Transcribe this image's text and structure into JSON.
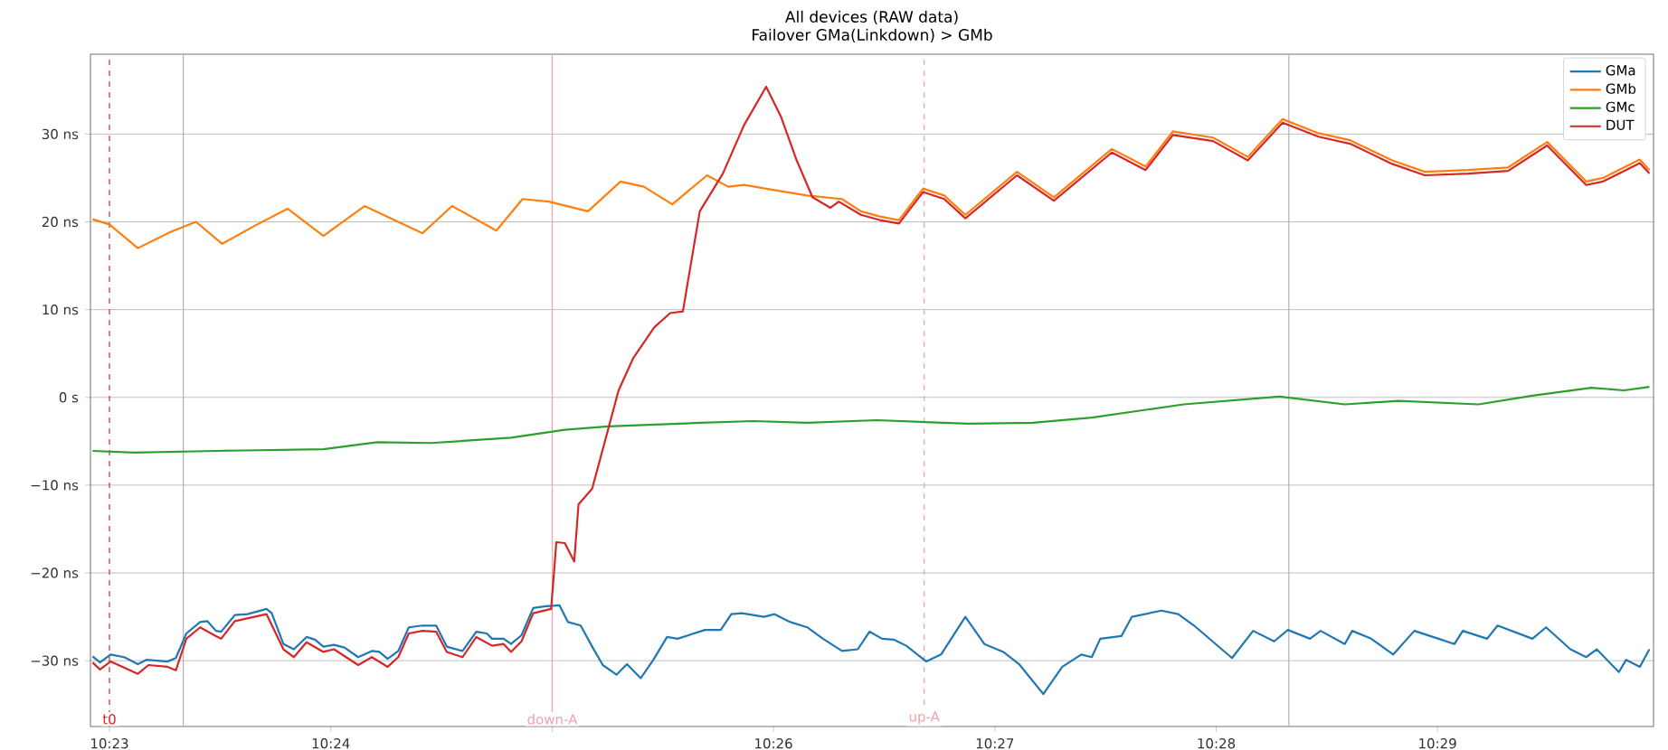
{
  "chart_data": {
    "type": "line",
    "title": "All devices (RAW data)",
    "subtitle": "Failover GMa(Linkdown) > GMb",
    "xlim": [
      10.3819,
      10.4996
    ],
    "ylim": [
      -37.5,
      39.1
    ],
    "xticks": [
      {
        "value": 10.38333,
        "label": "10:23"
      },
      {
        "value": 10.4,
        "label": "10:24"
      },
      {
        "value": 10.41667,
        "label": null
      },
      {
        "value": 10.43333,
        "label": "10:26"
      },
      {
        "value": 10.45,
        "label": "10:27"
      },
      {
        "value": 10.46667,
        "label": "10:28"
      },
      {
        "value": 10.48333,
        "label": "10:29"
      }
    ],
    "yticks": [
      {
        "value": -30,
        "label": "−30 ns"
      },
      {
        "value": -20,
        "label": "−20 ns"
      },
      {
        "value": -10,
        "label": "−10 ns"
      },
      {
        "value": 0,
        "label": "0 s"
      },
      {
        "value": 10,
        "label": "10 ns"
      },
      {
        "value": 20,
        "label": "20 ns"
      },
      {
        "value": 30,
        "label": "30 ns"
      }
    ],
    "grid": "y",
    "legend": "top right",
    "marker": "none",
    "line_style": "solid",
    "ref_lines": [
      {
        "axis": "x",
        "value": 10.38889,
        "color": "#b0b0b0",
        "line_style": "solid"
      },
      {
        "axis": "x",
        "value": 10.47214,
        "color": "#b0b0b0",
        "line_style": "solid"
      },
      {
        "axis": "x",
        "value": 10.38333,
        "label": "t0",
        "color": "#d62728",
        "line_style": "dashed"
      },
      {
        "axis": "x",
        "value": 10.41667,
        "label": "down-A",
        "color": "#f4a0aa",
        "line_style": "solid"
      },
      {
        "axis": "x",
        "value": 10.44468,
        "label": "up-A",
        "color": "#f4a0aa",
        "line_style": "dashed"
      }
    ],
    "series": [
      {
        "name": "GMa",
        "color": "#1f77b4",
        "x": [
          10.38206,
          10.38262,
          10.38341,
          10.38444,
          10.38547,
          10.38611,
          10.3877,
          10.38833,
          10.38912,
          10.39016,
          10.39071,
          10.39135,
          10.39174,
          10.39277,
          10.39373,
          10.39516,
          10.39555,
          10.39643,
          10.39722,
          10.39817,
          10.39881,
          10.39944,
          10.40024,
          10.40103,
          10.40206,
          10.40309,
          10.40365,
          10.40428,
          10.40508,
          10.40587,
          10.4069,
          10.40793,
          10.40873,
          10.40992,
          10.41095,
          10.41174,
          10.41214,
          10.41301,
          10.41357,
          10.41436,
          10.41524,
          10.41619,
          10.41722,
          10.41786,
          10.41881,
          10.41968,
          10.42048,
          10.42151,
          10.4223,
          10.42333,
          10.42429,
          10.42532,
          10.42611,
          10.42817,
          10.42936,
          10.43016,
          10.43095,
          10.43262,
          10.43341,
          10.4346,
          10.43587,
          10.43706,
          10.43849,
          10.43968,
          10.44056,
          10.44151,
          10.44238,
          10.44333,
          10.44484,
          10.44595,
          10.44778,
          10.44921,
          10.45064,
          10.45183,
          10.45365,
          10.45508,
          10.45651,
          10.4573,
          10.45794,
          10.45953,
          10.46032,
          10.46254,
          10.46381,
          10.465,
          10.46786,
          10.46945,
          10.47103,
          10.47207,
          10.47373,
          10.47453,
          10.47635,
          10.47691,
          10.47834,
          10.48,
          10.48159,
          10.48341,
          10.48461,
          10.48524,
          10.48707,
          10.48786,
          10.49048,
          10.49151,
          10.49334,
          10.49453,
          10.49532,
          10.49699,
          10.49754,
          10.49857,
          10.49929
        ],
        "values": [
          -29.5,
          -30.2,
          -29.3,
          -29.6,
          -30.4,
          -29.9,
          -30.1,
          -29.7,
          -26.9,
          -25.6,
          -25.5,
          -26.6,
          -26.7,
          -24.8,
          -24.7,
          -24.1,
          -24.6,
          -28.1,
          -28.7,
          -27.3,
          -27.6,
          -28.4,
          -28.2,
          -28.5,
          -29.6,
          -28.9,
          -29.0,
          -29.8,
          -28.9,
          -26.2,
          -26.0,
          -26.0,
          -28.4,
          -28.9,
          -26.7,
          -26.9,
          -27.5,
          -27.5,
          -28.1,
          -27.1,
          -24.0,
          -23.8,
          -23.7,
          -25.6,
          -26.0,
          -28.4,
          -30.5,
          -31.6,
          -30.4,
          -32.0,
          -29.9,
          -27.3,
          -27.5,
          -26.5,
          -26.5,
          -24.7,
          -24.6,
          -25.0,
          -24.7,
          -25.6,
          -26.2,
          -27.5,
          -28.9,
          -28.7,
          -26.7,
          -27.5,
          -27.6,
          -28.3,
          -30.1,
          -29.3,
          -25.0,
          -28.1,
          -29.0,
          -30.4,
          -33.8,
          -30.7,
          -29.3,
          -29.6,
          -27.5,
          -27.2,
          -25.0,
          -24.3,
          -24.7,
          -26.0,
          -29.7,
          -26.6,
          -27.8,
          -26.5,
          -27.5,
          -26.6,
          -28.1,
          -26.6,
          -27.5,
          -29.3,
          -26.6,
          -27.5,
          -28.1,
          -26.6,
          -27.5,
          -26.0,
          -27.5,
          -26.2,
          -28.7,
          -29.6,
          -28.7,
          -31.3,
          -29.9,
          -30.7,
          -28.7
        ]
      },
      {
        "name": "GMb",
        "color": "#ff7f0e",
        "x": [
          10.38206,
          10.38333,
          10.38547,
          10.38785,
          10.38984,
          10.39182,
          10.3942,
          10.39674,
          10.39944,
          10.40254,
          10.4069,
          10.40913,
          10.41246,
          10.41444,
          10.41643,
          10.41936,
          10.42182,
          10.42357,
          10.42571,
          10.42833,
          10.42992,
          10.43111,
          10.4331,
          10.43587,
          10.43849,
          10.43992,
          10.44135,
          10.44278,
          10.4446,
          10.44619,
          10.44778,
          10.45167,
          10.45445,
          10.45881,
          10.46008,
          10.46135,
          10.46341,
          10.46643,
          10.46905,
          10.47167,
          10.47437,
          10.47675,
          10.47992,
          10.48238,
          10.48564,
          10.48865,
          10.49159,
          10.49453,
          10.4958,
          10.49857,
          10.49929
        ],
        "values": [
          20.3,
          19.7,
          17.0,
          18.8,
          20.0,
          17.5,
          19.5,
          21.5,
          18.4,
          21.8,
          18.7,
          21.8,
          19.0,
          22.6,
          22.3,
          21.2,
          24.6,
          24.0,
          22.0,
          25.3,
          24.0,
          24.2,
          23.7,
          23.0,
          22.6,
          21.2,
          20.6,
          20.2,
          23.8,
          23.0,
          20.8,
          25.7,
          22.8,
          28.3,
          27.3,
          26.3,
          30.3,
          29.6,
          27.4,
          31.7,
          30.1,
          29.3,
          27.0,
          25.7,
          25.9,
          26.2,
          29.1,
          24.6,
          25.0,
          27.1,
          25.9
        ]
      },
      {
        "name": "GMc",
        "color": "#2ca02c",
        "x": [
          10.38206,
          10.38523,
          10.39135,
          10.39944,
          10.40349,
          10.40754,
          10.41357,
          10.41762,
          10.42087,
          10.42778,
          10.43183,
          10.43587,
          10.44111,
          10.44802,
          10.45286,
          10.4573,
          10.46421,
          10.47143,
          10.47635,
          10.4804,
          10.48643,
          10.49048,
          10.49492,
          10.49738,
          10.49929
        ],
        "values": [
          -6.1,
          -6.3,
          -6.1,
          -5.9,
          -5.1,
          -5.2,
          -4.6,
          -3.7,
          -3.3,
          -2.9,
          -2.7,
          -2.9,
          -2.6,
          -3.0,
          -2.9,
          -2.3,
          -0.8,
          0.1,
          -0.8,
          -0.4,
          -0.8,
          0.2,
          1.1,
          0.8,
          1.2
        ]
      },
      {
        "name": "DUT",
        "color": "#d62728",
        "x": [
          10.38206,
          10.38262,
          10.38341,
          10.38547,
          10.38627,
          10.3877,
          10.38833,
          10.38912,
          10.39016,
          10.39135,
          10.39174,
          10.39277,
          10.39516,
          10.39643,
          10.39722,
          10.39817,
          10.39944,
          10.40024,
          10.40206,
          10.40309,
          10.40428,
          10.40508,
          10.40587,
          10.4069,
          10.40793,
          10.40873,
          10.40992,
          10.41095,
          10.41214,
          10.41301,
          10.41357,
          10.41436,
          10.41524,
          10.41659,
          10.41698,
          10.41762,
          10.41833,
          10.41865,
          10.41968,
          10.42167,
          10.42278,
          10.42436,
          10.42555,
          10.42651,
          10.42778,
          10.42952,
          10.43111,
          10.43278,
          10.43389,
          10.43508,
          10.43627,
          10.43762,
          10.43825,
          10.43992,
          10.44135,
          10.44278,
          10.4446,
          10.44619,
          10.44778,
          10.45167,
          10.45445,
          10.45881,
          10.46008,
          10.46135,
          10.46341,
          10.46643,
          10.46905,
          10.47167,
          10.47437,
          10.47675,
          10.47992,
          10.48238,
          10.48564,
          10.48865,
          10.49159,
          10.49453,
          10.4958,
          10.49857,
          10.49929
        ],
        "values": [
          -30.2,
          -31.0,
          -30.1,
          -31.5,
          -30.5,
          -30.7,
          -31.1,
          -27.5,
          -26.2,
          -27.2,
          -27.5,
          -25.5,
          -24.7,
          -28.7,
          -29.6,
          -27.9,
          -29.0,
          -28.7,
          -30.5,
          -29.6,
          -30.7,
          -29.6,
          -26.9,
          -26.6,
          -26.7,
          -29.0,
          -29.6,
          -27.3,
          -28.3,
          -28.1,
          -29.0,
          -27.8,
          -24.6,
          -24.1,
          -16.5,
          -16.6,
          -18.7,
          -12.2,
          -10.4,
          0.8,
          4.5,
          8.0,
          9.6,
          9.8,
          21.2,
          25.5,
          31.0,
          35.4,
          32.0,
          27.0,
          22.8,
          21.6,
          22.3,
          20.8,
          20.2,
          19.8,
          23.4,
          22.6,
          20.4,
          25.3,
          22.4,
          27.9,
          26.9,
          25.9,
          29.9,
          29.2,
          27.0,
          31.3,
          29.7,
          28.9,
          26.6,
          25.3,
          25.5,
          25.8,
          28.7,
          24.2,
          24.6,
          26.7,
          25.5
        ]
      }
    ]
  }
}
